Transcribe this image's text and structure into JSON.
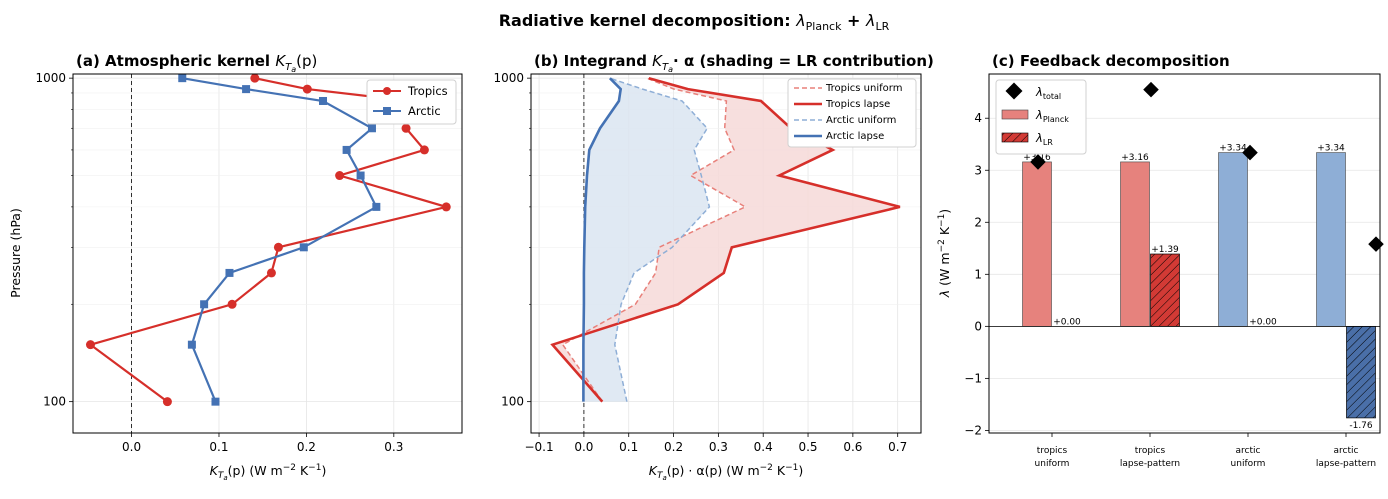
{
  "figure": {
    "suptitle_main": "Radiative kernel decomposition: ",
    "suptitle_l1": "λ",
    "suptitle_s1": "Planck",
    "suptitle_plus": " + ",
    "suptitle_l2": "λ",
    "suptitle_s2": "LR"
  },
  "colors": {
    "tropics": "#d62f2a",
    "arctic": "#4472b4",
    "tropics_light": "#e8807a",
    "arctic_light": "#8eaed6",
    "tropics_fill": "#f6d9d8",
    "arctic_fill": "#dbe5f1",
    "grid": "#e5e5e5"
  },
  "chart_data": [
    {
      "type": "line",
      "title_prefix": "(a) Atmospheric kernel ",
      "title_math": "K",
      "title_sub": "T",
      "title_subsub": "a",
      "title_suffix": "(p)",
      "xlabel_math": "K",
      "xlabel_sub": "T",
      "xlabel_subsub": "a",
      "xlabel_rest": "(p) (W m",
      "xlabel_exp1": "−2",
      "xlabel_mid": " K",
      "xlabel_exp2": "−1",
      "xlabel_end": ")",
      "ylabel": "Pressure (hPa)",
      "y_scale": "log",
      "y_inverted": true,
      "xlim": [
        -0.067,
        0.378
      ],
      "ylim": [
        1030,
        80
      ],
      "xticks": [
        0.0,
        0.1,
        0.2,
        0.3
      ],
      "xtick_labels": [
        "0.0",
        "0.1",
        "0.2",
        "0.3"
      ],
      "yticks": [
        100,
        1000
      ],
      "ytick_labels": [
        "100",
        "1000"
      ],
      "legend_position": "top-right",
      "series": [
        {
          "name": "Tropics",
          "marker": "circle",
          "pressure": [
            100,
            150,
            200,
            250,
            300,
            400,
            500,
            600,
            700,
            850,
            925,
            1000
          ],
          "values": [
            0.041,
            -0.047,
            0.115,
            0.16,
            0.168,
            0.36,
            0.238,
            0.335,
            0.314,
            0.318,
            0.201,
            0.141
          ]
        },
        {
          "name": "Arctic",
          "marker": "square",
          "pressure": [
            100,
            150,
            200,
            250,
            300,
            400,
            500,
            600,
            700,
            850,
            925,
            1000
          ],
          "values": [
            0.096,
            0.069,
            0.083,
            0.112,
            0.197,
            0.28,
            0.262,
            0.246,
            0.275,
            0.219,
            0.131,
            0.058
          ]
        }
      ]
    },
    {
      "type": "line",
      "title_prefix": "(b) Integrand ",
      "title_math": "K",
      "title_sub": "T",
      "title_subsub": "a",
      "title_suffix": "· α (shading = LR contribution)",
      "xlabel_math": "K",
      "xlabel_sub": "T",
      "xlabel_subsub": "a",
      "xlabel_rest": "(p) · α(p) (W m",
      "xlabel_exp1": "−2",
      "xlabel_mid": " K",
      "xlabel_exp2": "−1",
      "xlabel_end": ")",
      "y_scale": "log",
      "y_inverted": true,
      "xlim": [
        -0.118,
        0.752
      ],
      "ylim": [
        1030,
        80
      ],
      "xticks": [
        -0.1,
        0.0,
        0.1,
        0.2,
        0.3,
        0.4,
        0.5,
        0.6,
        0.7
      ],
      "xtick_labels": [
        "−0.1",
        "0.0",
        "0.1",
        "0.2",
        "0.3",
        "0.4",
        "0.5",
        "0.6",
        "0.7"
      ],
      "yticks": [
        100,
        1000
      ],
      "ytick_labels": [
        "100",
        "1000"
      ],
      "legend_position": "top-right",
      "series": [
        {
          "name": "Tropics uniform",
          "style": "dashed",
          "pressure": [
            100,
            150,
            200,
            250,
            300,
            400,
            500,
            600,
            700,
            850,
            925,
            1000
          ],
          "values": [
            0.041,
            -0.047,
            0.115,
            0.16,
            0.168,
            0.36,
            0.238,
            0.335,
            0.314,
            0.318,
            0.201,
            0.141
          ]
        },
        {
          "name": "Tropics lapse",
          "style": "solid",
          "pressure": [
            100,
            150,
            200,
            250,
            300,
            400,
            500,
            600,
            700,
            850,
            925,
            1000
          ],
          "values": [
            0.041,
            -0.07,
            0.21,
            0.312,
            0.33,
            0.705,
            0.436,
            0.555,
            0.462,
            0.395,
            0.232,
            0.145
          ]
        },
        {
          "name": "Arctic uniform",
          "style": "dashed",
          "pressure": [
            100,
            150,
            200,
            250,
            300,
            400,
            500,
            600,
            700,
            850,
            925,
            1000
          ],
          "values": [
            0.096,
            0.069,
            0.083,
            0.112,
            0.197,
            0.28,
            0.262,
            0.246,
            0.275,
            0.219,
            0.131,
            0.058
          ]
        },
        {
          "name": "Arctic lapse",
          "style": "solid",
          "pressure": [
            100,
            150,
            200,
            250,
            300,
            400,
            500,
            600,
            700,
            850,
            925,
            1000
          ],
          "values": [
            -0.001,
            -0.001,
            0.0,
            0.0,
            0.001,
            0.003,
            0.007,
            0.012,
            0.036,
            0.078,
            0.082,
            0.058
          ]
        }
      ]
    },
    {
      "type": "bar",
      "title": "(c) Feedback decomposition",
      "ylabel_main": "λ (W m",
      "ylabel_exp1": "−2",
      "ylabel_mid": " K",
      "ylabel_exp2": "−1",
      "ylabel_end": ")",
      "ylim": [
        -2.05,
        4.85
      ],
      "yticks": [
        -2,
        -1,
        0,
        1,
        2,
        3,
        4
      ],
      "ytick_labels": [
        "−2",
        "−1",
        "0",
        "1",
        "2",
        "3",
        "4"
      ],
      "categories": [
        "tropics\nuniform",
        "tropics\nlapse-pattern",
        "arctic\nuniform",
        "arctic\nlapse-pattern"
      ],
      "category_lines": [
        [
          "tropics",
          "uniform"
        ],
        [
          "tropics",
          "lapse-pattern"
        ],
        [
          "arctic",
          "uniform"
        ],
        [
          "arctic",
          "lapse-pattern"
        ]
      ],
      "legend_position": "top-left",
      "legend": [
        {
          "symbol": "λ",
          "sub": "total"
        },
        {
          "symbol": "λ",
          "sub": "Planck"
        },
        {
          "symbol": "λ",
          "sub": "LR"
        }
      ],
      "series": [
        {
          "name": "λ_Planck",
          "values": [
            3.16,
            3.16,
            3.34,
            3.34
          ],
          "labels": [
            "+3.16",
            "+3.16",
            "+3.34",
            "+3.34"
          ],
          "colors": [
            "#e6827d",
            "#e6827d",
            "#8eaed6",
            "#8eaed6"
          ]
        },
        {
          "name": "λ_LR",
          "values": [
            0.0,
            1.39,
            0.0,
            -1.76
          ],
          "labels": [
            "+0.00",
            "+1.39",
            "+0.00",
            "-1.76"
          ],
          "colors": [
            "#d23a35",
            "#d23a35",
            "#4a6fa8",
            "#4a6fa8"
          ]
        },
        {
          "name": "λ_total",
          "values": [
            3.16,
            4.55,
            3.34,
            1.58
          ]
        }
      ]
    }
  ]
}
